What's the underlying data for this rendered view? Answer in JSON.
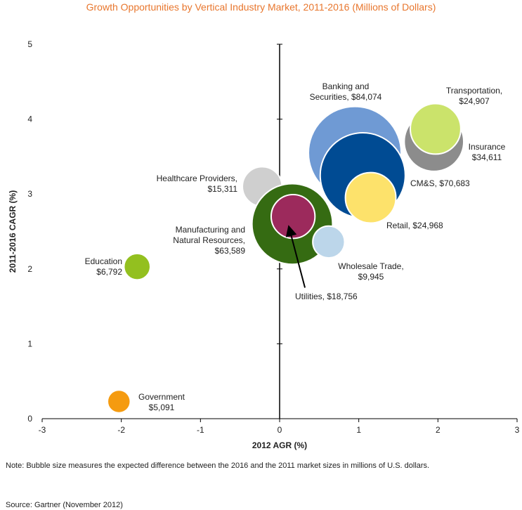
{
  "chart_data": {
    "type": "bubble",
    "title": "Growth Opportunities by Vertical Industry Market, 2011-2016 (Millions of Dollars)",
    "xlabel": "2012 AGR (%)",
    "ylabel": "2011-2016 CAGR (%)",
    "xlim": [
      -3,
      3
    ],
    "ylim": [
      0,
      5
    ],
    "xticks": [
      "-3",
      "-2",
      "-1",
      "0",
      "1",
      "2",
      "3"
    ],
    "yticks": [
      "0",
      "1",
      "2",
      "3",
      "4",
      "5"
    ],
    "bubbles": [
      {
        "id": "banking",
        "name": "Banking and",
        "name2": "Securities, $84,074",
        "x": 0.95,
        "y": 3.55,
        "size": 84074,
        "color": "#6f9ad4"
      },
      {
        "id": "insurance",
        "name": "Insurance",
        "name2": "$34,611",
        "x": 1.95,
        "y": 3.7,
        "size": 34611,
        "color": "#8c8c8c"
      },
      {
        "id": "transportation",
        "name": "Transportation,",
        "name2": "$24,907",
        "x": 1.97,
        "y": 3.87,
        "size": 24907,
        "color": "#cbe36b"
      },
      {
        "id": "cms",
        "name": "CM&S, $70,683",
        "name2": "",
        "x": 1.05,
        "y": 3.25,
        "size": 70683,
        "color": "#004b93"
      },
      {
        "id": "retail",
        "name": "Retail, $24,968",
        "name2": "",
        "x": 1.15,
        "y": 2.95,
        "size": 24968,
        "color": "#fde26b"
      },
      {
        "id": "healthcare",
        "name": "Healthcare Providers,",
        "name2": "$15,311",
        "x": -0.22,
        "y": 3.1,
        "size": 15311,
        "color": "#cfcfcf"
      },
      {
        "id": "manufacturing",
        "name": "Manufacturing and",
        "name2": "Natural Resources,",
        "name3": "$63,589",
        "x": 0.16,
        "y": 2.6,
        "size": 63589,
        "color": "#356b12"
      },
      {
        "id": "utilities",
        "name": "Utilities, $18,756",
        "name2": "",
        "x": 0.17,
        "y": 2.7,
        "size": 18756,
        "color": "#9c2a5c"
      },
      {
        "id": "wholesale",
        "name": "Wholesale Trade,",
        "name2": "$9,945",
        "x": 0.62,
        "y": 2.36,
        "size": 9945,
        "color": "#bcd6ea"
      },
      {
        "id": "education",
        "name": "Education",
        "name2": "$6,792",
        "x": -1.8,
        "y": 2.03,
        "size": 6792,
        "color": "#93c01f"
      },
      {
        "id": "government",
        "name": "Government",
        "name2": "$5,091",
        "x": -2.03,
        "y": 0.23,
        "size": 5091,
        "color": "#f59b10"
      }
    ],
    "annotation_arrow": {
      "target": "utilities",
      "from_x": 0.32,
      "from_y": 1.75,
      "to_x": 0.12,
      "to_y": 2.55
    }
  },
  "note": "Note: Bubble size measures the expected difference between the 2016 and the 2011 market sizes in millions of U.S. dollars.",
  "source": "Source: Gartner (November 2012)"
}
